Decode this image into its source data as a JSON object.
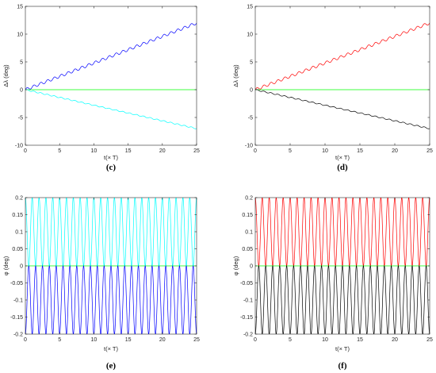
{
  "chart_data": [
    {
      "caption": "(c)",
      "type": "line",
      "xlabel": "t(× T)",
      "ylabel": "Δλ (deg)",
      "xlim": [
        0,
        25
      ],
      "ylim": [
        -10,
        15
      ],
      "xticks": [
        0,
        5,
        10,
        15,
        20,
        25
      ],
      "yticks": [
        -10,
        -5,
        0,
        5,
        10,
        15
      ],
      "grid": false,
      "series": [
        {
          "color": "#0000ff",
          "x": [
            0,
            25
          ],
          "y": [
            0,
            12
          ],
          "ripple": 0.25
        },
        {
          "color": "#00ff00",
          "x": [
            0,
            25
          ],
          "y": [
            0,
            0
          ],
          "ripple": 0
        },
        {
          "color": "#00ffff",
          "x": [
            0,
            25
          ],
          "y": [
            0,
            -7
          ],
          "ripple": 0.1
        }
      ]
    },
    {
      "caption": "(d)",
      "type": "line",
      "xlabel": "t(× T)",
      "ylabel": "Δλ (deg)",
      "xlim": [
        0,
        25
      ],
      "ylim": [
        -10,
        15
      ],
      "xticks": [
        0,
        5,
        10,
        15,
        20,
        25
      ],
      "yticks": [
        -10,
        -5,
        0,
        5,
        10,
        15
      ],
      "grid": false,
      "series": [
        {
          "color": "#ff0000",
          "x": [
            0,
            25
          ],
          "y": [
            0,
            12
          ],
          "ripple": 0.25
        },
        {
          "color": "#00ff00",
          "x": [
            0,
            25
          ],
          "y": [
            0,
            0
          ],
          "ripple": 0
        },
        {
          "color": "#000000",
          "x": [
            0,
            25
          ],
          "y": [
            0,
            -7
          ],
          "ripple": 0.1
        }
      ]
    },
    {
      "caption": "(e)",
      "type": "line",
      "xlabel": "t(× T)",
      "ylabel": "φ (deg)",
      "xlim": [
        0,
        25
      ],
      "ylim": [
        -0.2,
        0.2
      ],
      "xticks": [
        0,
        5,
        10,
        15,
        20,
        25
      ],
      "yticks": [
        -0.2,
        -0.15,
        -0.1,
        -0.05,
        0,
        0.05,
        0.1,
        0.15,
        0.2
      ],
      "grid": false,
      "series": [
        {
          "color": "#00ffff",
          "oscillation": {
            "amplitude": 0.2,
            "offset": 0.1,
            "period": 1,
            "phase": 0
          }
        },
        {
          "color": "#00ff00",
          "x": [
            0,
            25
          ],
          "y": [
            0,
            0
          ]
        },
        {
          "color": "#0000ff",
          "oscillation": {
            "amplitude": 0.2,
            "offset": -0.1,
            "period": 1,
            "phase": 0.5
          }
        }
      ]
    },
    {
      "caption": "(f)",
      "type": "line",
      "xlabel": "t(× T)",
      "ylabel": "φ (deg)",
      "xlim": [
        0,
        25
      ],
      "ylim": [
        -0.2,
        0.2
      ],
      "xticks": [
        0,
        5,
        10,
        15,
        20,
        25
      ],
      "yticks": [
        -0.2,
        -0.15,
        -0.1,
        -0.05,
        0,
        0.05,
        0.1,
        0.15,
        0.2
      ],
      "grid": false,
      "series": [
        {
          "color": "#ff0000",
          "oscillation": {
            "amplitude": 0.2,
            "offset": 0.1,
            "period": 1,
            "phase": 0
          }
        },
        {
          "color": "#00ff00",
          "x": [
            0,
            25
          ],
          "y": [
            0,
            0
          ]
        },
        {
          "color": "#000000",
          "oscillation": {
            "amplitude": 0.2,
            "offset": -0.1,
            "period": 1,
            "phase": 0.5
          }
        }
      ]
    }
  ]
}
